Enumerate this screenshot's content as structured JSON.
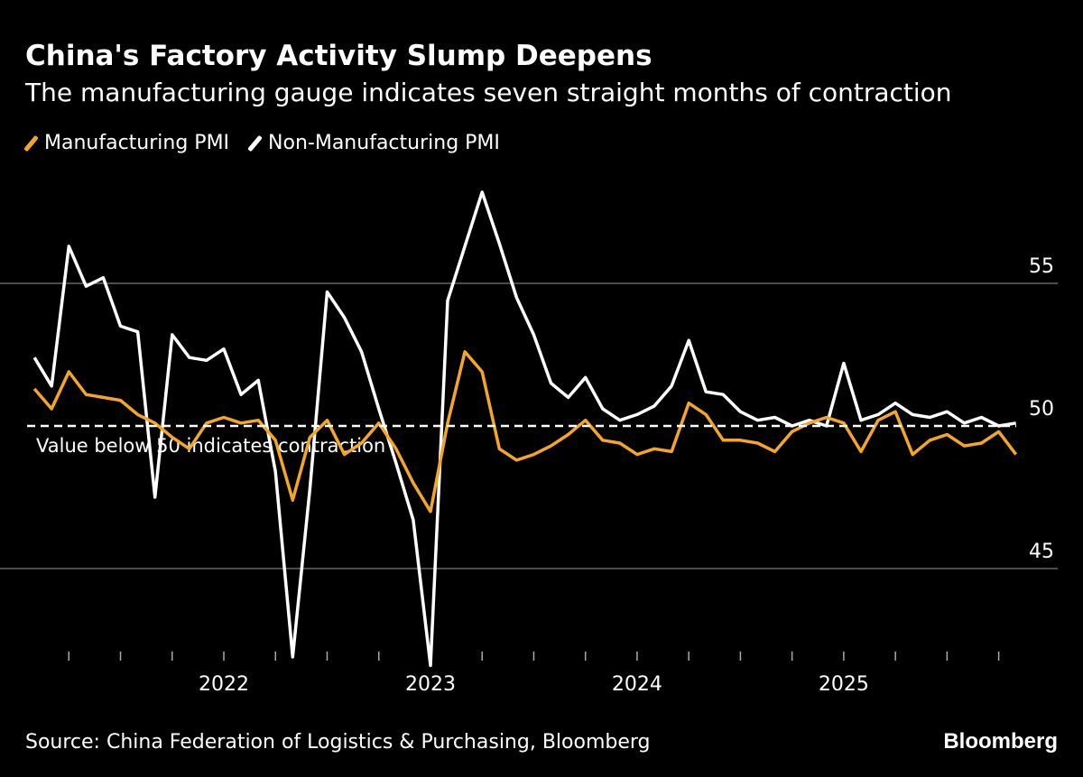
{
  "header": {
    "title": "China's Factory Activity Slump Deepens",
    "subtitle": "The manufacturing gauge indicates seven straight months of contraction"
  },
  "footer": {
    "source": "Source: China Federation of Logistics & Purchasing, Bloomberg",
    "logo": "Bloomberg"
  },
  "chart_data": {
    "type": "line",
    "x_start": "2021-01",
    "x_end": "2025-10",
    "frequency": "monthly",
    "xticks": [
      "2022",
      "2023",
      "2024",
      "2025"
    ],
    "yticks": [
      45,
      50,
      55
    ],
    "ylim": [
      41.5,
      58.5
    ],
    "grid": true,
    "legend_placement": "top-left",
    "reference_line": {
      "value": 50,
      "label": "Value below 50 indicates contraction",
      "style": "dashed"
    },
    "series": [
      {
        "name": "Manufacturing PMI",
        "color": "#f5a623",
        "values": [
          51.3,
          50.6,
          51.9,
          51.1,
          51.0,
          50.9,
          50.4,
          50.1,
          49.6,
          49.2,
          50.1,
          50.3,
          50.1,
          50.2,
          49.5,
          47.4,
          49.6,
          50.2,
          49.0,
          49.4,
          50.1,
          49.2,
          48.0,
          47.0,
          50.1,
          52.6,
          51.9,
          49.2,
          48.8,
          49.0,
          49.3,
          49.7,
          50.2,
          49.5,
          49.4,
          49.0,
          49.2,
          49.1,
          50.8,
          50.4,
          49.5,
          49.5,
          49.4,
          49.1,
          49.8,
          50.1,
          50.3,
          50.1,
          49.1,
          50.2,
          50.5,
          49.0,
          49.5,
          49.7,
          49.3,
          49.4,
          49.8,
          49.0
        ]
      },
      {
        "name": "Non-Manufacturing PMI",
        "color": "#ffffff",
        "values": [
          52.4,
          51.4,
          56.3,
          54.9,
          55.2,
          53.5,
          53.3,
          47.5,
          53.2,
          52.4,
          52.3,
          52.7,
          51.1,
          51.6,
          48.4,
          41.9,
          47.8,
          54.7,
          53.8,
          52.6,
          50.6,
          48.7,
          46.7,
          41.6,
          54.4,
          56.3,
          58.2,
          56.4,
          54.5,
          53.2,
          51.5,
          51.0,
          51.7,
          50.6,
          50.2,
          50.4,
          50.7,
          51.4,
          53.0,
          51.2,
          51.1,
          50.5,
          50.2,
          50.3,
          50.0,
          50.2,
          50.0,
          52.2,
          50.2,
          50.4,
          50.8,
          50.4,
          50.3,
          50.5,
          50.1,
          50.3,
          50.0,
          50.1
        ]
      }
    ]
  }
}
